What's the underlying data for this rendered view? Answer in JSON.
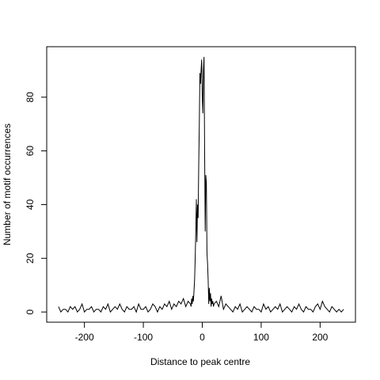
{
  "chart_data": {
    "type": "line",
    "x_label": "Distance to peak centre",
    "y_label": "Number of motif occurrences",
    "x": [
      -244,
      -240,
      -236,
      -232,
      -228,
      -224,
      -220,
      -216,
      -212,
      -208,
      -204,
      -200,
      -196,
      -192,
      -188,
      -184,
      -180,
      -176,
      -172,
      -168,
      -164,
      -160,
      -156,
      -152,
      -148,
      -144,
      -140,
      -136,
      -132,
      -128,
      -124,
      -120,
      -116,
      -112,
      -108,
      -104,
      -100,
      -96,
      -92,
      -88,
      -84,
      -80,
      -76,
      -72,
      -68,
      -64,
      -60,
      -56,
      -52,
      -48,
      -44,
      -40,
      -36,
      -32,
      -28,
      -24,
      -20,
      -19,
      -18,
      -17,
      -16,
      -15,
      -14,
      -13,
      -12,
      -11,
      -10,
      -9,
      -8,
      -7,
      -6,
      -5,
      -4,
      -3,
      -2,
      -1,
      0,
      1,
      2,
      3,
      4,
      5,
      6,
      7,
      8,
      9,
      10,
      11,
      12,
      13,
      14,
      15,
      16,
      17,
      18,
      19,
      20,
      24,
      28,
      32,
      36,
      40,
      44,
      48,
      52,
      56,
      60,
      64,
      68,
      72,
      76,
      80,
      84,
      88,
      92,
      96,
      100,
      104,
      108,
      112,
      116,
      120,
      124,
      128,
      132,
      136,
      140,
      144,
      148,
      152,
      156,
      160,
      164,
      168,
      172,
      176,
      180,
      184,
      188,
      192,
      196,
      200,
      204,
      208,
      212,
      216,
      220,
      224,
      228,
      232,
      236,
      240
    ],
    "series": [
      {
        "name": "occurrences",
        "color": "#000000",
        "values": [
          2,
          0,
          1,
          1,
          0,
          2,
          1,
          2,
          0,
          1,
          3,
          0,
          1,
          1,
          2,
          0,
          1,
          1,
          0,
          2,
          1,
          3,
          0,
          1,
          2,
          1,
          3,
          1,
          0,
          2,
          1,
          1,
          2,
          0,
          3,
          1,
          1,
          2,
          0,
          1,
          3,
          2,
          0,
          2,
          1,
          3,
          2,
          4,
          1,
          3,
          2,
          4,
          3,
          5,
          2,
          4,
          3,
          2,
          5,
          3,
          6,
          4,
          8,
          12,
          20,
          30,
          42,
          26,
          40,
          35,
          55,
          70,
          89,
          85,
          90,
          94,
          80,
          74,
          90,
          95,
          60,
          30,
          51,
          48,
          22,
          18,
          12,
          3,
          9,
          4,
          7,
          2,
          5,
          3,
          4,
          2,
          3,
          4,
          2,
          6,
          1,
          3,
          2,
          1,
          0,
          2,
          1,
          3,
          0,
          1,
          2,
          1,
          0,
          2,
          1,
          1,
          0,
          3,
          1,
          2,
          0,
          1,
          2,
          1,
          3,
          0,
          1,
          2,
          1,
          0,
          2,
          1,
          3,
          1,
          0,
          2,
          1,
          1,
          0,
          2,
          3,
          1,
          4,
          2,
          1,
          0,
          2,
          1,
          0,
          1,
          0,
          1
        ]
      }
    ],
    "xlim": [
      -264,
      260
    ],
    "ylim": [
      -3.8,
      98.8
    ],
    "xticks": [
      -200,
      -100,
      0,
      100,
      200
    ],
    "yticks": [
      0,
      20,
      40,
      60,
      80
    ]
  }
}
